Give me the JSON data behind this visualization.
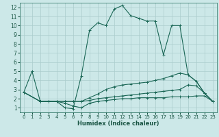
{
  "xlabel": "Humidex (Indice chaleur)",
  "xlim": [
    -0.5,
    23.5
  ],
  "ylim": [
    0.5,
    12.5
  ],
  "xticks": [
    0,
    1,
    2,
    3,
    4,
    5,
    6,
    7,
    8,
    9,
    10,
    11,
    12,
    13,
    14,
    15,
    16,
    17,
    18,
    19,
    20,
    21,
    22,
    23
  ],
  "yticks": [
    1,
    2,
    3,
    4,
    5,
    6,
    7,
    8,
    9,
    10,
    11,
    12
  ],
  "bg_color": "#cce8e8",
  "grid_color": "#aacccc",
  "line_color": "#1a6655",
  "lines": [
    {
      "x": [
        0,
        1,
        2,
        3,
        4,
        5,
        6,
        7,
        8,
        9,
        10,
        11,
        12,
        13,
        14,
        15,
        16,
        17,
        18,
        19,
        20,
        21,
        22,
        23
      ],
      "y": [
        2.7,
        5.0,
        1.7,
        1.7,
        1.7,
        1.0,
        0.9,
        4.5,
        9.5,
        10.3,
        10.0,
        11.8,
        12.2,
        11.1,
        10.8,
        10.5,
        10.5,
        6.8,
        10.0,
        10.0,
        4.6,
        3.9,
        2.6,
        1.7
      ]
    },
    {
      "x": [
        0,
        2,
        3,
        4,
        5,
        6,
        7,
        8,
        9,
        10,
        11,
        12,
        13,
        14,
        15,
        16,
        17,
        18,
        19,
        20,
        21,
        22,
        23
      ],
      "y": [
        2.7,
        1.7,
        1.7,
        1.7,
        1.7,
        1.7,
        1.7,
        2.1,
        2.5,
        3.0,
        3.3,
        3.5,
        3.6,
        3.7,
        3.8,
        4.0,
        4.2,
        4.5,
        4.8,
        4.6,
        3.9,
        2.6,
        1.7
      ]
    },
    {
      "x": [
        0,
        2,
        3,
        4,
        5,
        6,
        7,
        8,
        9,
        10,
        11,
        12,
        13,
        14,
        15,
        16,
        17,
        18,
        19,
        20,
        21,
        22,
        23
      ],
      "y": [
        2.7,
        1.7,
        1.7,
        1.7,
        1.7,
        1.7,
        1.7,
        1.8,
        2.0,
        2.1,
        2.2,
        2.3,
        2.4,
        2.5,
        2.6,
        2.7,
        2.8,
        2.9,
        3.0,
        3.5,
        3.4,
        2.6,
        1.7
      ]
    },
    {
      "x": [
        0,
        2,
        3,
        4,
        5,
        6,
        7,
        8,
        9,
        10,
        11,
        12,
        13,
        14,
        15,
        16,
        17,
        18,
        19,
        20,
        21,
        22,
        23
      ],
      "y": [
        2.7,
        1.7,
        1.7,
        1.7,
        1.5,
        1.2,
        1.0,
        1.5,
        1.7,
        1.8,
        1.9,
        2.0,
        2.0,
        2.1,
        2.1,
        2.1,
        2.1,
        2.2,
        2.2,
        2.2,
        2.3,
        2.3,
        1.7
      ]
    }
  ]
}
